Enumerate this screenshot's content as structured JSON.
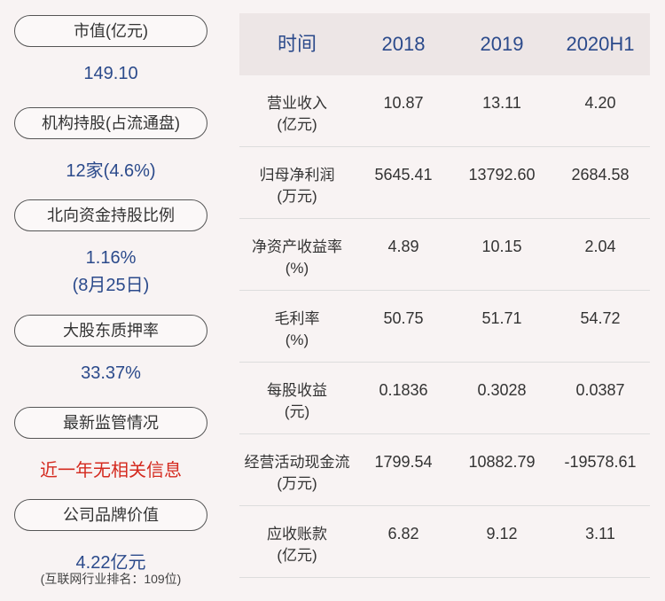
{
  "left": [
    {
      "label": "市值(亿元)",
      "values": [
        "149.10"
      ]
    },
    {
      "label": "机构持股(占流通盘)",
      "values": [
        "12家(4.6%)"
      ]
    },
    {
      "label": "北向资金持股比例",
      "values": [
        "1.16%",
        "(8月25日)"
      ]
    },
    {
      "label": "大股东质押率",
      "values": [
        "33.37%"
      ]
    },
    {
      "label": "最新监管情况",
      "values": [
        "近一年无相关信息"
      ]
    },
    {
      "label": "公司品牌价值",
      "values": [
        "4.22亿元",
        "(互联网行业排名：109位)"
      ]
    }
  ],
  "table": {
    "header": [
      "时间",
      "2018",
      "2019",
      "2020H1"
    ],
    "rows": [
      {
        "label": [
          "营业收入",
          "(亿元)"
        ],
        "values": [
          "10.87",
          "13.11",
          "4.20"
        ]
      },
      {
        "label": [
          "归母净利润",
          "(万元)"
        ],
        "values": [
          "5645.41",
          "13792.60",
          "2684.58"
        ]
      },
      {
        "label": [
          "净资产收益率",
          "(%)"
        ],
        "values": [
          "4.89",
          "10.15",
          "2.04"
        ]
      },
      {
        "label": [
          "毛利率",
          "(%)"
        ],
        "values": [
          "50.75",
          "51.71",
          "54.72"
        ]
      },
      {
        "label": [
          "每股收益",
          "(元)"
        ],
        "values": [
          "0.1836",
          "0.3028",
          "0.0387"
        ]
      },
      {
        "label": [
          "经营活动现金流",
          "(万元)"
        ],
        "values": [
          "1799.54",
          "10882.79",
          "-19578.61"
        ]
      },
      {
        "label": [
          "应收账款",
          "(亿元)"
        ],
        "values": [
          "6.82",
          "9.12",
          "3.11"
        ]
      }
    ]
  }
}
